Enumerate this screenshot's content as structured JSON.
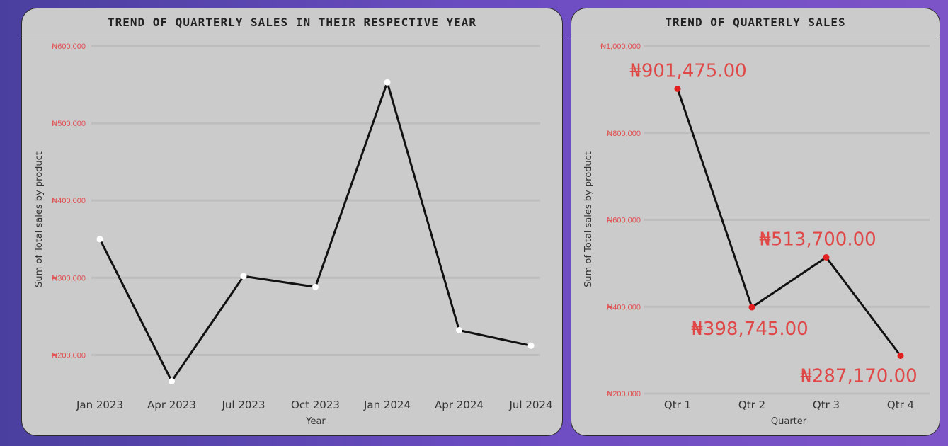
{
  "chart_data": [
    {
      "type": "line",
      "title": "TREND OF QUARTERLY SALES IN THEIR RESPECTIVE YEAR",
      "xlabel": "Year",
      "ylabel": "Sum of Total sales by product",
      "categories": [
        "Jan 2023",
        "Apr 2023",
        "Jul 2023",
        "Oct 2023",
        "Jan 2024",
        "Apr 2024",
        "Jul 2024"
      ],
      "values": [
        350000,
        166000,
        302000,
        288000,
        553000,
        232000,
        212000
      ],
      "ylim": [
        160000,
        600000
      ],
      "yticks": [
        200000,
        300000,
        400000,
        500000,
        600000
      ],
      "ytick_labels": [
        "₦200,000",
        "₦300,000",
        "₦400,000",
        "₦500,000",
        "₦600,000"
      ],
      "line_color": "#111111",
      "marker_color": "#ffffff",
      "grid": true
    },
    {
      "type": "line",
      "title": "TREND OF QUARTERLY SALES",
      "xlabel": "Quarter",
      "ylabel": "Sum of Total sales by product",
      "categories": [
        "Qtr 1",
        "Qtr 2",
        "Qtr 3",
        "Qtr 4"
      ],
      "values": [
        901475,
        398745,
        513700,
        287170
      ],
      "data_labels": [
        "₦901,475.00",
        "₦398,745.00",
        "₦513,700.00",
        "₦287,170.00"
      ],
      "ylim": [
        200000,
        1000000
      ],
      "yticks": [
        200000,
        400000,
        600000,
        800000,
        1000000
      ],
      "ytick_labels": [
        "₦200,000",
        "₦400,000",
        "₦600,000",
        "₦800,000",
        "₦1,000,000"
      ],
      "line_color": "#111111",
      "marker_color": "#e02020",
      "label_color": "#e04848",
      "grid": true
    }
  ]
}
